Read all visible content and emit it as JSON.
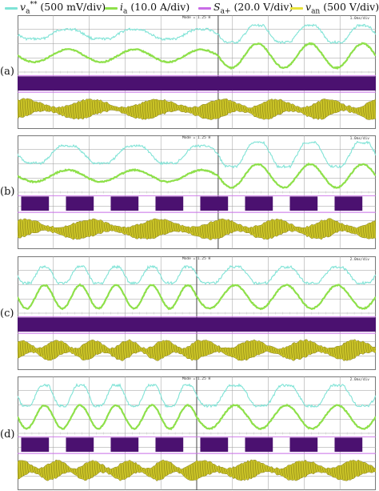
{
  "legend": {
    "items": [
      {
        "symbol": "v",
        "sub": "a",
        "sup": "**",
        "unit": "(500 mV/div)",
        "color": "#7fe3d6"
      },
      {
        "symbol": "i",
        "sub": "a",
        "sup": "",
        "unit": "(10.0 A/div)",
        "color": "#8ee04a"
      },
      {
        "symbol": "S",
        "sub": "a+",
        "sup": "",
        "unit": "(20.0 V/div)",
        "color": "#c86ce6"
      },
      {
        "symbol": "v",
        "sub": "an",
        "sup": "",
        "unit": "(500 V/div)",
        "color": "#e8e23a"
      }
    ]
  },
  "colors": {
    "ref": "#7fe3d6",
    "current": "#8ee04a",
    "gate": "#4b1170",
    "gateLine": "#c86ce6",
    "van": "#c9c226",
    "grid": "#9a9a9a",
    "axis": "#777777"
  },
  "panels": [
    {
      "label": "(a)",
      "scale": "1.0ms/div",
      "trigger": "Mode = 1.25 H"
    },
    {
      "label": "(b)",
      "scale": "1.0ms/div",
      "trigger": "Mode = 1.25 H"
    },
    {
      "label": "(c)",
      "scale": "2.0ms/div",
      "trigger": "Mode = 1.25 H"
    },
    {
      "label": "(d)",
      "scale": "2.0ms/div",
      "trigger": "Mode = 1.25 H"
    }
  ],
  "chart_data": [
    {
      "type": "line",
      "panel": "(a)",
      "series": [
        {
          "name": "v_a** (500 mV/div)",
          "shape": "sine-flat-top",
          "amplitude_div": [
            0.6,
            1.05
          ],
          "cycles": [
            3,
            3
          ]
        },
        {
          "name": "i_a (10.0 A/div)",
          "shape": "sine",
          "amplitude_div": [
            0.8,
            1.55
          ],
          "cycles": [
            3,
            3
          ]
        },
        {
          "name": "S_a+ (20.0 V/div)",
          "shape": "pwm-continuous"
        },
        {
          "name": "v_an (500 V/div)",
          "shape": "pwm-envelope"
        }
      ],
      "xdiv": 10,
      "ydiv": 8,
      "step_at_div": 5.6
    },
    {
      "type": "line",
      "panel": "(b)",
      "series": [
        {
          "name": "v_a** (500 mV/div)",
          "shape": "sine-clamped",
          "amplitude_div": [
            1.0,
            1.4
          ],
          "cycles": [
            3,
            3
          ]
        },
        {
          "name": "i_a (10.0 A/div)",
          "shape": "sine",
          "amplitude_div": [
            0.75,
            1.5
          ],
          "cycles": [
            3,
            3
          ]
        },
        {
          "name": "S_a+ (20.0 V/div)",
          "shape": "pwm-gapped"
        },
        {
          "name": "v_an (500 V/div)",
          "shape": "pwm-envelope"
        }
      ],
      "xdiv": 10,
      "ydiv": 8,
      "step_at_div": 5.6
    },
    {
      "type": "line",
      "panel": "(c)",
      "series": [
        {
          "name": "v_a** (500 mV/div)",
          "shape": "sine-flat-top",
          "amplitude_div": [
            1.0,
            1.0
          ],
          "cycles": [
            5,
            3.5
          ]
        },
        {
          "name": "i_a (10.0 A/div)",
          "shape": "sine",
          "amplitude_div": [
            1.5,
            1.5
          ],
          "cycles": [
            5,
            3.5
          ]
        },
        {
          "name": "S_a+ (20.0 V/div)",
          "shape": "pwm-continuous"
        },
        {
          "name": "v_an (500 V/div)",
          "shape": "pwm-envelope"
        }
      ],
      "xdiv": 10,
      "ydiv": 8,
      "step_at_div": 5.0
    },
    {
      "type": "line",
      "panel": "(d)",
      "series": [
        {
          "name": "v_a** (500 mV/div)",
          "shape": "sine-clamped",
          "amplitude_div": [
            1.2,
            1.2
          ],
          "cycles": [
            5,
            3.5
          ]
        },
        {
          "name": "i_a (10.0 A/div)",
          "shape": "sine",
          "amplitude_div": [
            1.5,
            1.5
          ],
          "cycles": [
            5,
            3.5
          ]
        },
        {
          "name": "S_a+ (20.0 V/div)",
          "shape": "pwm-gapped"
        },
        {
          "name": "v_an (500 V/div)",
          "shape": "pwm-envelope"
        }
      ],
      "xdiv": 10,
      "ydiv": 8,
      "step_at_div": 5.0
    }
  ]
}
